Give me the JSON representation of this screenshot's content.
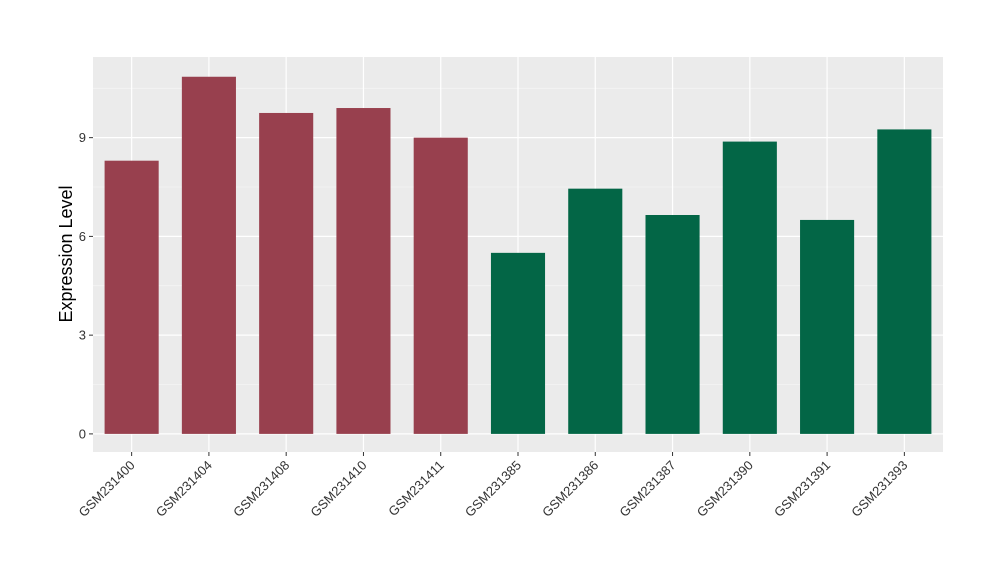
{
  "chart_data": {
    "type": "bar",
    "title": "",
    "xlabel": "",
    "ylabel": "Expression Level",
    "ylim": [
      -0.55,
      11.45
    ],
    "yticks": [
      0,
      3,
      6,
      9
    ],
    "ytick_labels": [
      "0",
      "3",
      "6",
      "9"
    ],
    "grid": true,
    "legend": "none",
    "categories": [
      "GSM231400",
      "GSM231404",
      "GSM231408",
      "GSM231410",
      "GSM231411",
      "GSM231385",
      "GSM231386",
      "GSM231387",
      "GSM231390",
      "GSM231391",
      "GSM231393"
    ],
    "values": [
      8.3,
      10.85,
      9.75,
      9.9,
      9.0,
      5.5,
      7.45,
      6.65,
      8.88,
      6.5,
      9.25
    ],
    "groups": [
      "red",
      "red",
      "red",
      "red",
      "red",
      "green",
      "green",
      "green",
      "green",
      "green",
      "green"
    ]
  },
  "colors": {
    "red": "#98404E",
    "green": "#036646",
    "panel_background": "#EBEBEB",
    "grid_major": "#FFFFFF",
    "grid_minor": "#F5F5F5",
    "tick": "#333333"
  }
}
